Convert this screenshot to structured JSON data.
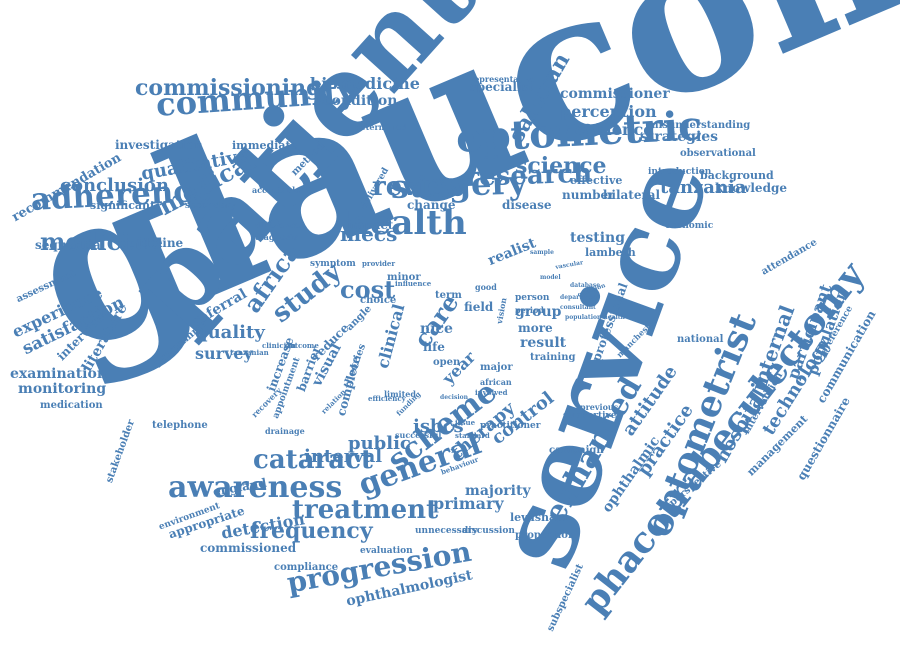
{
  "word_color": "#4a7fb5",
  "background_color": "#ffffff",
  "words": [
    "effectiveness",
    "glaucoma",
    "patient",
    "service",
    "optometric",
    "health",
    "surgery",
    "community",
    "commissioning",
    "adherence",
    "medicine",
    "review",
    "research",
    "tanzania",
    "phacotrabeculectomy",
    "optometrist",
    "enhanced",
    "scheme",
    "general",
    "awareness",
    "treatment",
    "cataract",
    "progression",
    "frequency",
    "africa",
    "study",
    "cost",
    "care",
    "science",
    "saharan",
    "perception",
    "evidence",
    "strategies",
    "biomedicine",
    "condition",
    "specialist",
    "representative",
    "commissioner",
    "misunderstanding",
    "introduction",
    "background",
    "knowledge",
    "observational",
    "medical",
    "qualitative",
    "conclusion",
    "investigation",
    "immediate",
    "method",
    "recommendation",
    "significant",
    "secondary",
    "sequential",
    "guideline",
    "assessment",
    "experience",
    "satisfaction",
    "interview",
    "literature",
    "examination",
    "monitoring",
    "medication",
    "stakeholder",
    "telephone",
    "quality",
    "survey",
    "referral",
    "programme",
    "visual",
    "reduce",
    "mecs",
    "impact",
    "minor",
    "realist",
    "testing",
    "economic",
    "lambeth",
    "disease",
    "number",
    "bilateral",
    "change",
    "delivered",
    "acceptable",
    "difference",
    "diagnosis",
    "attendance",
    "national",
    "manchester",
    "internal",
    "participant",
    "population",
    "preference",
    "communication",
    "hospital",
    "practice",
    "technology",
    "questionnaire",
    "management",
    "intervention",
    "attitude",
    "ophthalmic",
    "perspective",
    "subspecialist",
    "control",
    "isbcs",
    "public",
    "interval",
    "england",
    "environment",
    "appropriate",
    "detection",
    "commissioned",
    "compliance",
    "ophthalmologist",
    "evaluation",
    "unnecessary",
    "discussion",
    "proportion",
    "lewisham",
    "majority",
    "primary",
    "therapy",
    "campaign",
    "practitioner",
    "standard",
    "supportive",
    "previous",
    "successful",
    "drainage",
    "appointment",
    "complete",
    "barrier",
    "theories",
    "increase",
    "recovery",
    "clinical",
    "year",
    "nice",
    "life",
    "field",
    "group",
    "more",
    "result",
    "professional",
    "training",
    "term",
    "good",
    "person",
    "period",
    "choice",
    "angle",
    "vision",
    "open",
    "major",
    "african",
    "limited",
    "effective",
    "determined",
    "efficiency",
    "influence",
    "provider",
    "symptom",
    "outcome",
    "clinician",
    "tanzanian",
    "decision",
    "relation",
    "funding",
    "behaviour",
    "issue",
    "involved",
    "department",
    "consultant",
    "population health",
    "sample",
    "database",
    "question",
    "vascular",
    "model"
  ]
}
